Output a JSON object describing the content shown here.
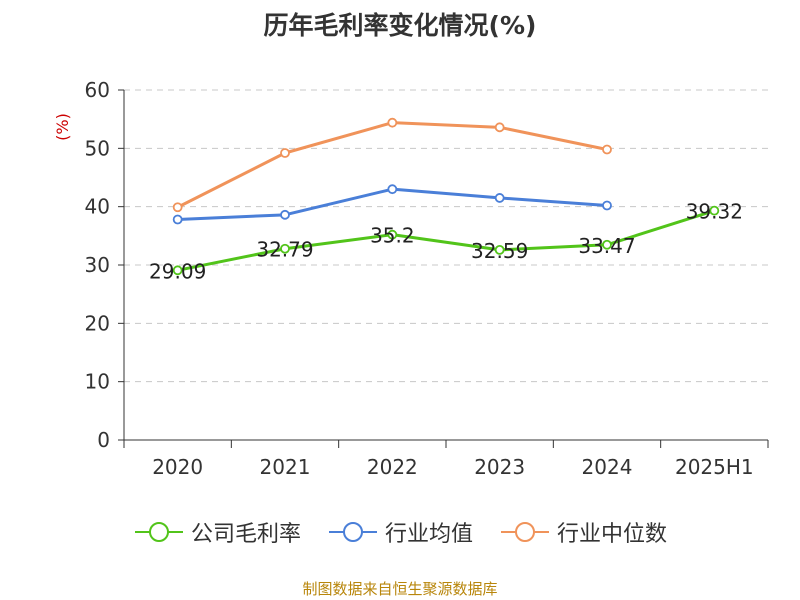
{
  "chart_data": {
    "type": "line",
    "title": "历年毛利率变化情况(%)",
    "ylabel": "(%)",
    "xlabel": "",
    "categories": [
      "2020",
      "2021",
      "2022",
      "2023",
      "2024",
      "2025H1"
    ],
    "ylim": [
      0,
      60
    ],
    "yticks": [
      0,
      10,
      20,
      30,
      40,
      50,
      60
    ],
    "grid": true,
    "legend_position": "bottom",
    "series": [
      {
        "name": "公司毛利率",
        "color": "#52c41a",
        "values": [
          29.09,
          32.79,
          35.2,
          32.59,
          33.47,
          39.32
        ],
        "show_labels": true
      },
      {
        "name": "行业均值",
        "color": "#4a7fd8",
        "values": [
          37.8,
          38.6,
          43.0,
          41.5,
          40.2,
          null
        ],
        "show_labels": false
      },
      {
        "name": "行业中位数",
        "color": "#f0935a",
        "values": [
          39.9,
          49.2,
          54.4,
          53.6,
          49.8,
          null
        ],
        "show_labels": false
      }
    ]
  },
  "source": "制图数据来自恒生聚源数据库"
}
